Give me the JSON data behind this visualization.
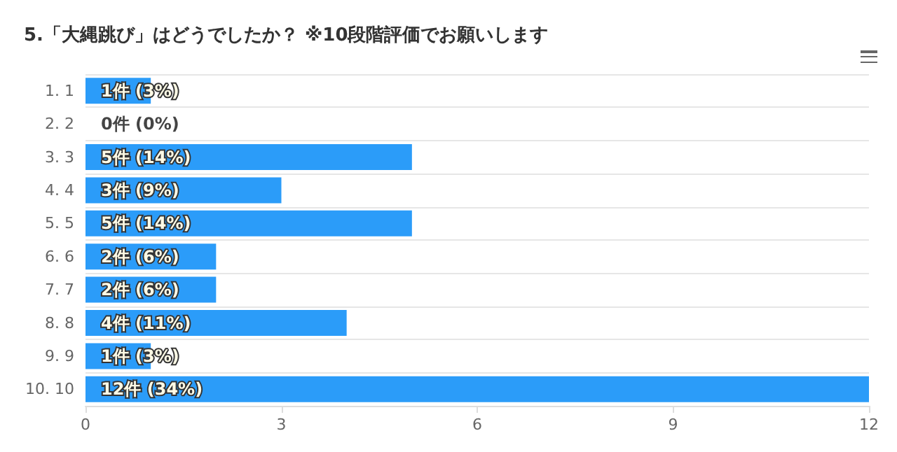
{
  "chart_data": {
    "type": "bar",
    "orientation": "horizontal",
    "title": "5.「大縄跳び」はどうでしたか？ ※10段階評価でお願いします",
    "categories": [
      "1. 1",
      "2. 2",
      "3. 3",
      "4. 4",
      "5. 5",
      "6. 6",
      "7. 7",
      "8. 8",
      "9. 9",
      "10. 10"
    ],
    "values": [
      1,
      0,
      5,
      3,
      5,
      2,
      2,
      4,
      1,
      12
    ],
    "value_labels": [
      "1件 (3%)",
      "0件 (0%)",
      "5件 (14%)",
      "3件 (9%)",
      "5件 (14%)",
      "2件 (6%)",
      "2件 (6%)",
      "4件 (11%)",
      "1件 (3%)",
      "12件 (34%)"
    ],
    "color": "#2b9cf9",
    "xlim": [
      0,
      12
    ],
    "xticks": [
      0,
      3,
      6,
      9,
      12
    ],
    "grid": "y"
  }
}
